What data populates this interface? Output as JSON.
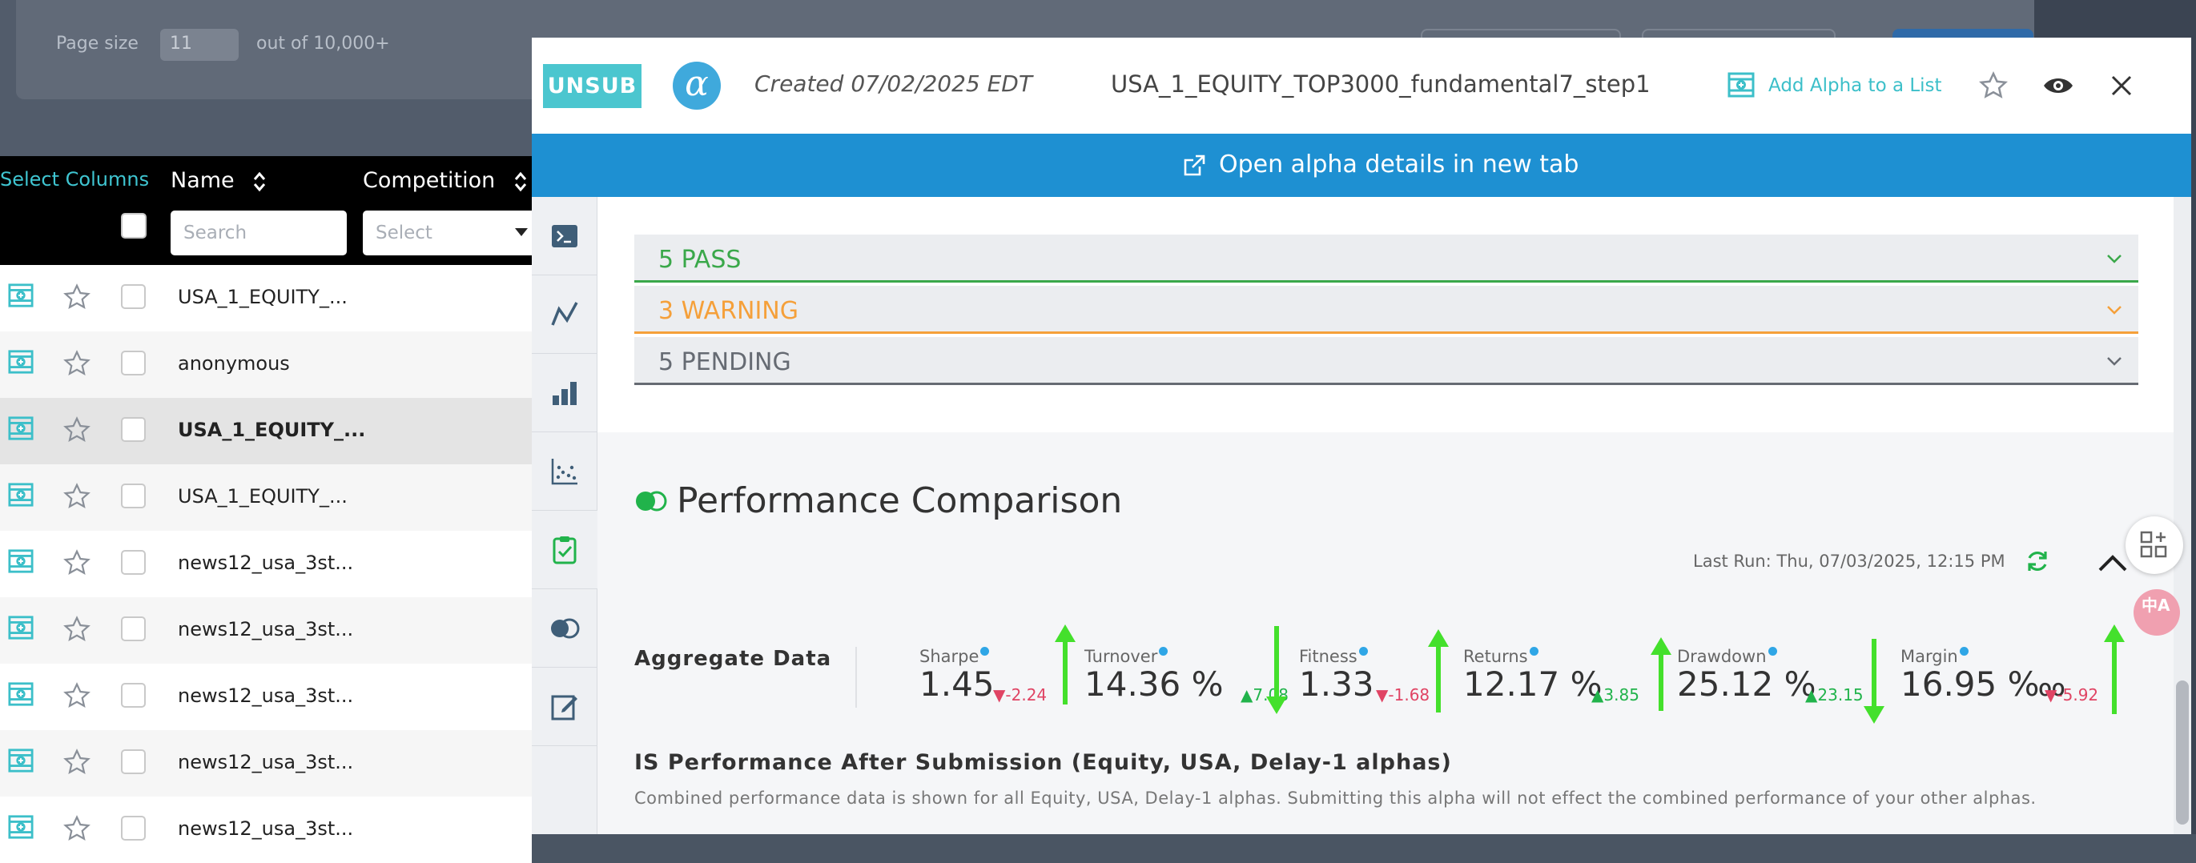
{
  "background_page": {
    "page_size_label": "Page size",
    "page_size_value": "11",
    "out_of_label": "out of 10,000+"
  },
  "list": {
    "select_columns": "Select Columns",
    "columns": {
      "name": "Name",
      "competition": "Competition"
    },
    "name_search_placeholder": "Search",
    "competition_select_placeholder": "Select",
    "rows": [
      {
        "name": "USA_1_EQUITY_...",
        "bold": false,
        "highlight": false
      },
      {
        "name": "anonymous",
        "bold": false,
        "highlight": false
      },
      {
        "name": "USA_1_EQUITY_...",
        "bold": true,
        "highlight": true
      },
      {
        "name": "USA_1_EQUITY_...",
        "bold": false,
        "highlight": false
      },
      {
        "name": "news12_usa_3st...",
        "bold": false,
        "highlight": false
      },
      {
        "name": "news12_usa_3st...",
        "bold": false,
        "highlight": false
      },
      {
        "name": "news12_usa_3st...",
        "bold": false,
        "highlight": false
      },
      {
        "name": "news12_usa_3st...",
        "bold": false,
        "highlight": false
      },
      {
        "name": "news12_usa_3st...",
        "bold": false,
        "highlight": false
      }
    ]
  },
  "modal": {
    "badge": "UNSUB",
    "logo_glyph": "α",
    "created": "Created 07/02/2025 EDT",
    "alpha_name": "USA_1_EQUITY_TOP3000_fundamental7_step1",
    "add_to_list": "Add Alpha to a List",
    "open_details": "Open alpha details in new tab",
    "sidebar_icons": [
      "terminal-icon",
      "line-chart-icon",
      "bar-chart-icon",
      "scatter-icon",
      "clipboard-check-icon",
      "compare-toggle-icon",
      "edit-icon"
    ],
    "checks": [
      {
        "label": "5 PASS",
        "color": "#3aa84a"
      },
      {
        "label": "3 WARNING",
        "color": "#f5a03a"
      },
      {
        "label": "5 PENDING",
        "color": "#666b73"
      }
    ],
    "performance": {
      "title": "Performance Comparison",
      "last_run": "Last Run: Thu, 07/03/2025, 12:15 PM",
      "aggregate_label": "Aggregate Data",
      "metrics": [
        {
          "name": "Sharpe",
          "value": "1.45",
          "delta": "-2.24",
          "dir": "down"
        },
        {
          "name": "Turnover",
          "value": "14.36 %",
          "delta": "7.08",
          "dir": "up"
        },
        {
          "name": "Fitness",
          "value": "1.33",
          "delta": "-1.68",
          "dir": "down"
        },
        {
          "name": "Returns",
          "value": "12.17 %",
          "delta": "3.85",
          "dir": "up"
        },
        {
          "name": "Drawdown",
          "value": "25.12 %",
          "delta": "23.15",
          "dir": "up"
        },
        {
          "name": "Margin",
          "value": "16.95 ‱",
          "delta": "-5.92",
          "dir": "down"
        }
      ],
      "is_title": "IS Performance After Submission (Equity, USA, Delay-1 alphas)",
      "is_desc": "Combined performance data is shown for all Equity, USA, Delay-1 alphas. Submitting this alpha will not effect the combined performance of your other alphas."
    }
  },
  "floating": {
    "translate_label": "中A"
  },
  "colors": {
    "accent": "#1e90d2",
    "teal": "#4bc6cf",
    "annotation_arrow": "#44e02c"
  }
}
